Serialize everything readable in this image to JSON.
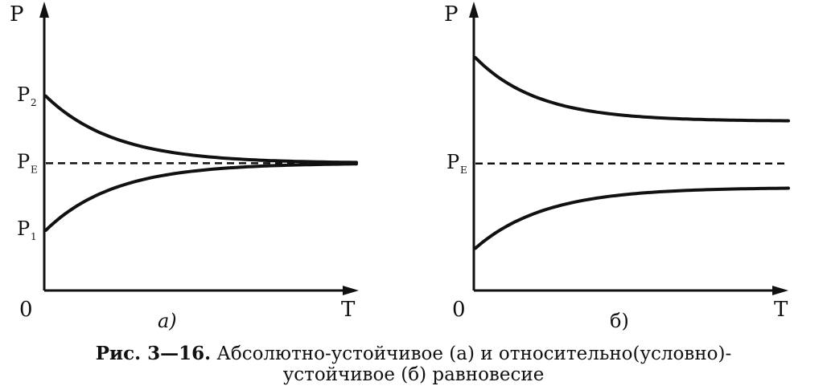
{
  "chart_data": [
    {
      "type": "line",
      "panel_label": "а)",
      "ylabel": "P",
      "xlabel": "T",
      "origin_label": "0",
      "y_ticks": [
        {
          "label": "P",
          "sub": "2",
          "value": 2.0
        },
        {
          "label": "P",
          "sub": "E",
          "value": 1.0
        },
        {
          "label": "P",
          "sub": "1",
          "value": 0.0
        }
      ],
      "xlim": [
        0,
        10
      ],
      "ylim": [
        -0.9,
        3.1
      ],
      "series": [
        {
          "role": "upper",
          "style": "solid",
          "start": 2.0,
          "limit": 1.0,
          "rate": 0.45
        },
        {
          "role": "lower",
          "style": "solid",
          "start": 0.0,
          "limit": 1.0,
          "rate": 0.45
        },
        {
          "role": "equilibrium",
          "style": "dashed",
          "value": 1.0
        }
      ]
    },
    {
      "type": "line",
      "panel_label": "б)",
      "ylabel": "P",
      "xlabel": "T",
      "origin_label": "0",
      "y_ticks": [
        {
          "label": "P",
          "sub": "E",
          "value": 1.0
        }
      ],
      "xlim": [
        0,
        10
      ],
      "ylim": [
        -0.8,
        3.0
      ],
      "series": [
        {
          "role": "upper",
          "style": "solid",
          "start": 2.5,
          "limit": 1.6,
          "rate": 0.5
        },
        {
          "role": "lower",
          "style": "solid",
          "start": -0.2,
          "limit": 0.66,
          "rate": 0.45
        },
        {
          "role": "equilibrium",
          "style": "dashed",
          "value": 1.0
        }
      ]
    }
  ],
  "caption": {
    "number": "Рис. 3—16.",
    "line1_text": " Абсолютно-устойчивое (а) и относительно(условно)-",
    "line2_text": "устойчивое (б) равновесие"
  }
}
